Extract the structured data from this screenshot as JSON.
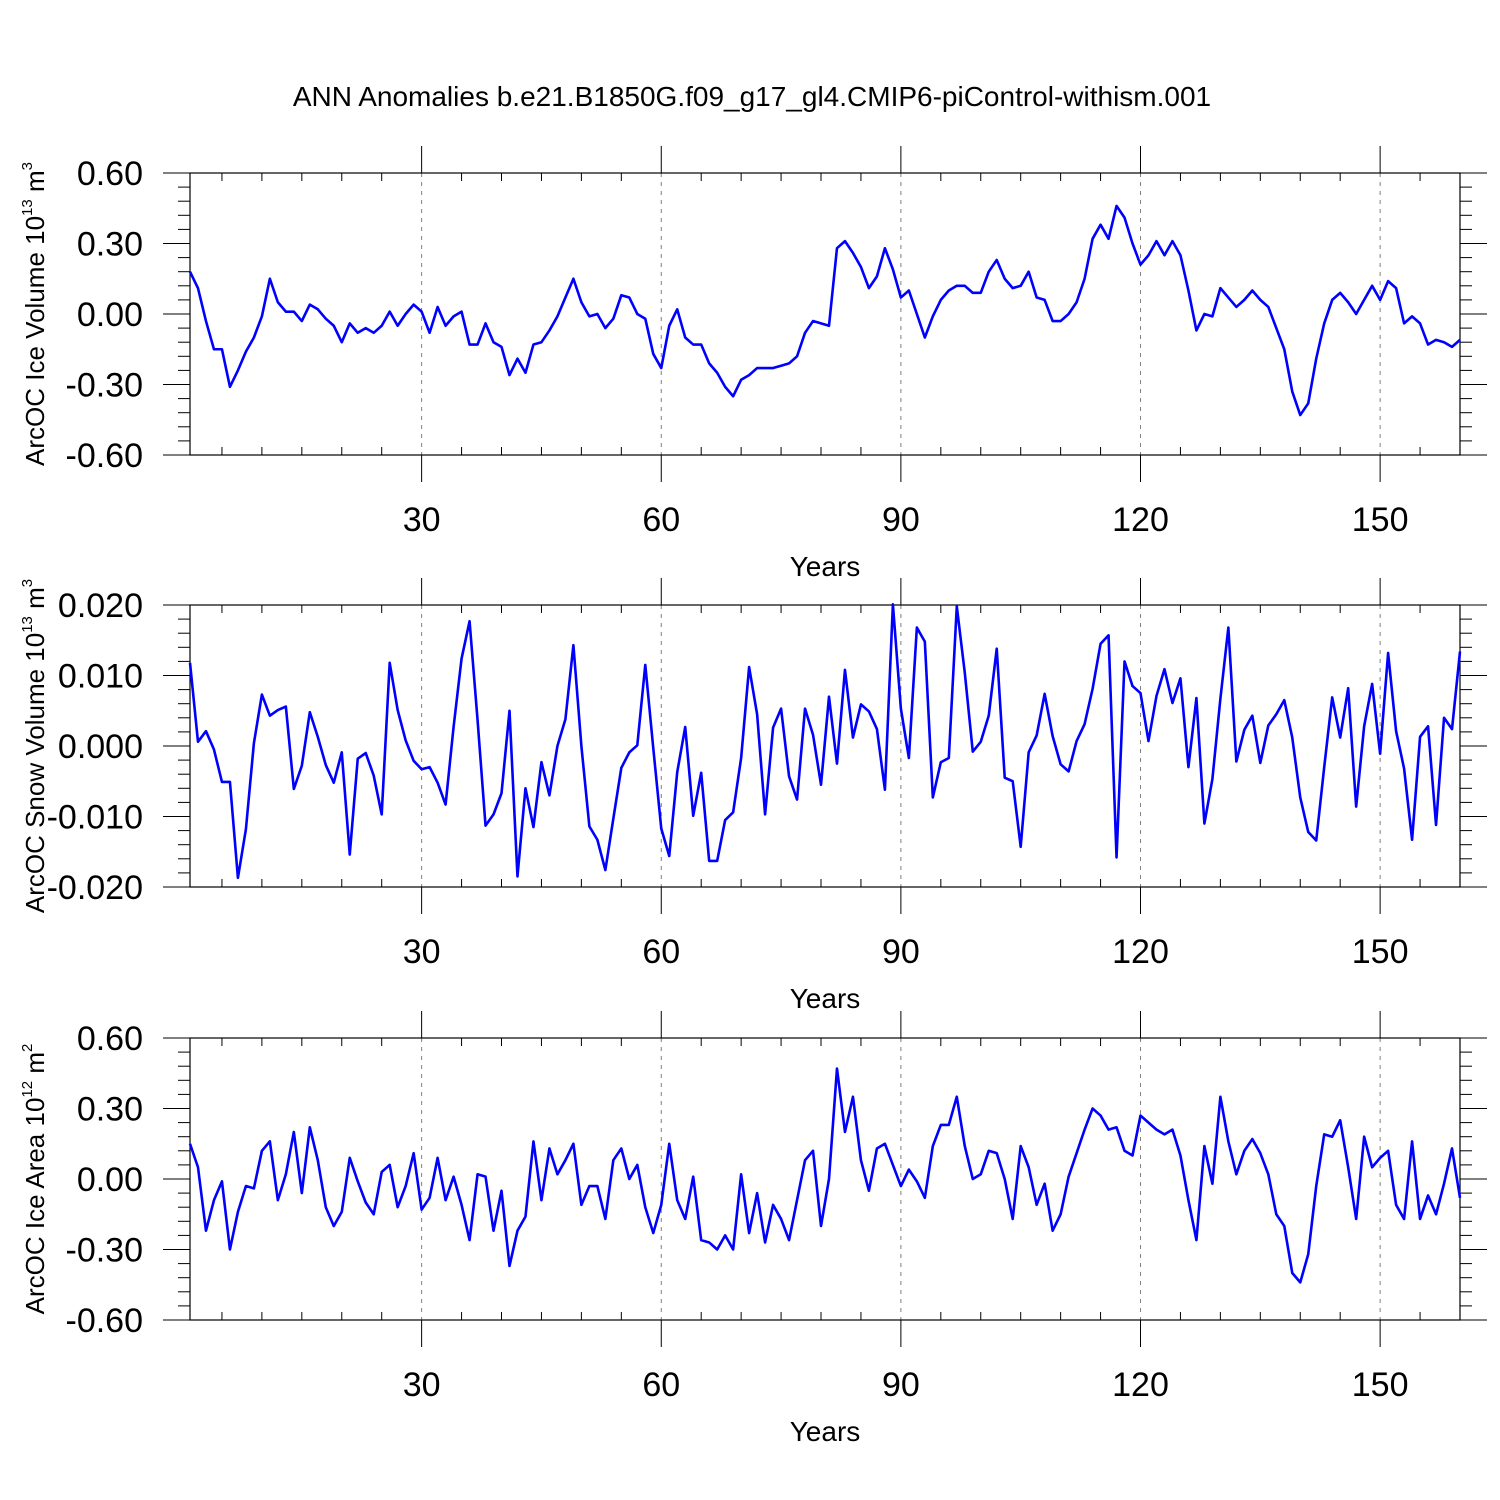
{
  "title": "ANN Anomalies b.e21.B1850G.f09_g17_gl4.CMIP6-piControl-withism.001",
  "colors": {
    "series": "#0000ff",
    "axis": "#000000",
    "grid": "#808080"
  },
  "chart_data": [
    {
      "type": "line",
      "title": "ANN Anomalies b.e21.B1850G.f09_g17_gl4.CMIP6-piControl-withism.001",
      "xlabel": "Years",
      "ylabel": {
        "prefix": "ArcOC Ice Volume 10",
        "exp": "13",
        "unit": " m",
        "unit_exp": "3"
      },
      "xlim": [
        1,
        160
      ],
      "ylim": [
        -0.6,
        0.6
      ],
      "x_ticks": [
        30,
        60,
        90,
        120,
        150
      ],
      "x_tick_labels": [
        "30",
        "60",
        "90",
        "120",
        "150"
      ],
      "y_ticks": [
        0.6,
        0.3,
        0.0,
        -0.3,
        -0.6
      ],
      "y_tick_labels": [
        "0.60",
        "0.30",
        "0.00",
        "-0.30",
        "-0.60"
      ],
      "grid": "vertical dashed at major x ticks",
      "series": [
        {
          "name": "ArcOC Ice Volume",
          "x_start": 1,
          "values": [
            0.18,
            0.11,
            -0.03,
            -0.15,
            -0.15,
            -0.31,
            -0.24,
            -0.16,
            -0.1,
            -0.01,
            0.15,
            0.05,
            0.01,
            0.01,
            -0.03,
            0.04,
            0.02,
            -0.02,
            -0.05,
            -0.12,
            -0.04,
            -0.08,
            -0.06,
            -0.08,
            -0.05,
            0.01,
            -0.05,
            0.0,
            0.04,
            0.01,
            -0.08,
            0.03,
            -0.05,
            -0.01,
            0.01,
            -0.13,
            -0.13,
            -0.04,
            -0.12,
            -0.14,
            -0.26,
            -0.19,
            -0.25,
            -0.13,
            -0.12,
            -0.07,
            -0.01,
            0.07,
            0.15,
            0.05,
            -0.01,
            0.0,
            -0.06,
            -0.02,
            0.08,
            0.07,
            0.0,
            -0.02,
            -0.17,
            -0.23,
            -0.05,
            0.02,
            -0.1,
            -0.13,
            -0.13,
            -0.21,
            -0.25,
            -0.31,
            -0.35,
            -0.28,
            -0.26,
            -0.23,
            -0.23,
            -0.23,
            -0.22,
            -0.21,
            -0.18,
            -0.08,
            -0.03,
            -0.04,
            -0.05,
            0.28,
            0.31,
            0.26,
            0.2,
            0.11,
            0.16,
            0.28,
            0.19,
            0.07,
            0.1,
            0.0,
            -0.1,
            -0.01,
            0.06,
            0.1,
            0.12,
            0.12,
            0.09,
            0.09,
            0.18,
            0.23,
            0.15,
            0.11,
            0.12,
            0.18,
            0.07,
            0.06,
            -0.03,
            -0.03,
            0.0,
            0.05,
            0.15,
            0.32,
            0.38,
            0.32,
            0.46,
            0.41,
            0.3,
            0.21,
            0.25,
            0.31,
            0.25,
            0.31,
            0.25,
            0.1,
            -0.07,
            0.0,
            -0.01,
            0.11,
            0.07,
            0.03,
            0.06,
            0.1,
            0.06,
            0.03,
            -0.06,
            -0.15,
            -0.33,
            -0.43,
            -0.38,
            -0.19,
            -0.04,
            0.06,
            0.09,
            0.05,
            0.0,
            0.06,
            0.12,
            0.06,
            0.14,
            0.11,
            -0.04,
            -0.01,
            -0.04,
            -0.13,
            -0.11,
            -0.12,
            -0.14,
            -0.11
          ]
        }
      ]
    },
    {
      "type": "line",
      "xlabel": "Years",
      "ylabel": {
        "prefix": "ArcOC Snow Volume 10",
        "exp": "13",
        "unit": " m",
        "unit_exp": "3"
      },
      "xlim": [
        1,
        160
      ],
      "ylim": [
        -0.02,
        0.02
      ],
      "x_ticks": [
        30,
        60,
        90,
        120,
        150
      ],
      "x_tick_labels": [
        "30",
        "60",
        "90",
        "120",
        "150"
      ],
      "y_ticks": [
        0.02,
        0.01,
        0.0,
        -0.01,
        -0.02
      ],
      "y_tick_labels": [
        "0.020",
        "0.010",
        "0.000",
        "-0.010",
        "-0.020"
      ],
      "grid": "vertical dashed at major x ticks",
      "series": [
        {
          "name": "ArcOC Snow Volume",
          "x_start": 1,
          "values": [
            0.0118,
            0.0006,
            0.0021,
            -0.0005,
            -0.0051,
            -0.0051,
            -0.0187,
            -0.0118,
            0.0004,
            0.0073,
            0.0043,
            0.0051,
            0.0056,
            -0.0061,
            -0.0028,
            0.0048,
            0.0013,
            -0.0027,
            -0.0052,
            -0.0009,
            -0.0154,
            -0.0018,
            -0.001,
            -0.0042,
            -0.0097,
            0.0118,
            0.0051,
            0.0008,
            -0.0021,
            -0.0033,
            -0.003,
            -0.0052,
            -0.0083,
            0.0027,
            0.0124,
            0.0177,
            0.0037,
            -0.0113,
            -0.0097,
            -0.0067,
            0.005,
            -0.0185,
            -0.006,
            -0.0115,
            -0.0023,
            -0.007,
            0.0,
            0.0038,
            0.0143,
            0.0,
            -0.0114,
            -0.0133,
            -0.0176,
            -0.0103,
            -0.0031,
            -0.0009,
            0.0001,
            0.0115,
            -0.0003,
            -0.0117,
            -0.0156,
            -0.0037,
            0.0027,
            -0.0099,
            -0.0038,
            -0.0163,
            -0.0163,
            -0.0105,
            -0.0094,
            -0.0017,
            0.0112,
            0.0045,
            -0.0097,
            0.0026,
            0.0053,
            -0.0043,
            -0.0076,
            0.0053,
            0.0016,
            -0.0055,
            0.007,
            -0.0025,
            0.0108,
            0.0012,
            0.0059,
            0.0049,
            0.0024,
            -0.0062,
            0.0201,
            0.0053,
            -0.0017,
            0.0168,
            0.0148,
            -0.0073,
            -0.0023,
            -0.0017,
            0.0198,
            0.0104,
            -0.0008,
            0.0006,
            0.0043,
            0.0138,
            -0.0045,
            -0.005,
            -0.0143,
            -0.0009,
            0.0015,
            0.0074,
            0.0014,
            -0.0026,
            -0.0036,
            0.0007,
            0.0031,
            0.0081,
            0.0145,
            0.0157,
            -0.0158,
            0.012,
            0.0085,
            0.0075,
            0.0007,
            0.0071,
            0.0109,
            0.0061,
            0.0096,
            -0.003,
            0.0068,
            -0.011,
            -0.0047,
            0.0067,
            0.0168,
            -0.0022,
            0.0023,
            0.0043,
            -0.0024,
            0.0029,
            0.0045,
            0.0065,
            0.0012,
            -0.0073,
            -0.0122,
            -0.0134,
            -0.003,
            0.0069,
            0.0012,
            0.0082,
            -0.0086,
            0.0028,
            0.0088,
            -0.0011,
            0.0132,
            0.0021,
            -0.0032,
            -0.0133,
            0.0013,
            0.0028,
            -0.0112,
            0.004,
            0.0024,
            0.0134
          ]
        }
      ]
    },
    {
      "type": "line",
      "xlabel": "Years",
      "ylabel": {
        "prefix": "ArcOC Ice Area 10",
        "exp": "12",
        "unit": " m",
        "unit_exp": "2"
      },
      "xlim": [
        1,
        160
      ],
      "ylim": [
        -0.6,
        0.6
      ],
      "x_ticks": [
        30,
        60,
        90,
        120,
        150
      ],
      "x_tick_labels": [
        "30",
        "60",
        "90",
        "120",
        "150"
      ],
      "y_ticks": [
        0.6,
        0.3,
        0.0,
        -0.3,
        -0.6
      ],
      "y_tick_labels": [
        "0.60",
        "0.30",
        "0.00",
        "-0.30",
        "-0.60"
      ],
      "grid": "vertical dashed at major x ticks",
      "series": [
        {
          "name": "ArcOC Ice Area",
          "x_start": 1,
          "values": [
            0.15,
            0.05,
            -0.22,
            -0.09,
            -0.01,
            -0.3,
            -0.14,
            -0.03,
            -0.04,
            0.12,
            0.16,
            -0.09,
            0.02,
            0.2,
            -0.06,
            0.22,
            0.08,
            -0.12,
            -0.2,
            -0.14,
            0.09,
            -0.01,
            -0.1,
            -0.15,
            0.03,
            0.06,
            -0.12,
            -0.03,
            0.11,
            -0.13,
            -0.08,
            0.09,
            -0.09,
            0.01,
            -0.11,
            -0.26,
            0.02,
            0.01,
            -0.22,
            -0.05,
            -0.37,
            -0.22,
            -0.16,
            0.16,
            -0.09,
            0.13,
            0.02,
            0.08,
            0.15,
            -0.11,
            -0.03,
            -0.03,
            -0.17,
            0.08,
            0.13,
            0.0,
            0.06,
            -0.12,
            -0.23,
            -0.11,
            0.15,
            -0.09,
            -0.17,
            0.01,
            -0.26,
            -0.27,
            -0.3,
            -0.24,
            -0.3,
            0.02,
            -0.23,
            -0.06,
            -0.27,
            -0.11,
            -0.17,
            -0.26,
            -0.09,
            0.08,
            0.12,
            -0.2,
            0.0,
            0.47,
            0.2,
            0.35,
            0.08,
            -0.05,
            0.13,
            0.15,
            0.06,
            -0.03,
            0.04,
            -0.01,
            -0.08,
            0.14,
            0.23,
            0.23,
            0.35,
            0.14,
            0.0,
            0.02,
            0.12,
            0.11,
            0.0,
            -0.17,
            0.14,
            0.05,
            -0.11,
            -0.02,
            -0.22,
            -0.15,
            0.01,
            0.11,
            0.21,
            0.3,
            0.27,
            0.21,
            0.22,
            0.12,
            0.1,
            0.27,
            0.24,
            0.21,
            0.19,
            0.21,
            0.1,
            -0.09,
            -0.26,
            0.14,
            -0.02,
            0.35,
            0.16,
            0.02,
            0.12,
            0.17,
            0.11,
            0.02,
            -0.15,
            -0.2,
            -0.4,
            -0.44,
            -0.32,
            -0.03,
            0.19,
            0.18,
            0.25,
            0.05,
            -0.17,
            0.18,
            0.05,
            0.09,
            0.12,
            -0.11,
            -0.17,
            0.16,
            -0.17,
            -0.07,
            -0.15,
            -0.02,
            0.13,
            -0.08
          ]
        }
      ]
    }
  ]
}
